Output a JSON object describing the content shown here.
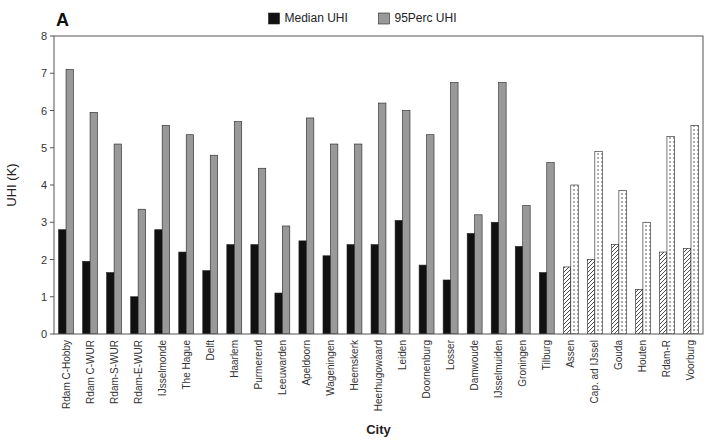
{
  "chart_data": {
    "type": "bar",
    "annotations": [
      "A"
    ],
    "x_label": "City",
    "y_label": "UHI (K)",
    "categories": [
      "Rdam C-Hobby",
      "Rdam C-WUR",
      "Rdam-S-WUR",
      "Rdam-E-WUR",
      "IJsselmonde",
      "The Hague",
      "Delft",
      "Haarlem",
      "Purmerend",
      "Leeuwarden",
      "Apeldoorn",
      "Wageningen",
      "Heemskerk",
      "Heerhugowaard",
      "Leiden",
      "Doornenburg",
      "Losser",
      "Damwoude",
      "IJsselmuiden",
      "Groningen",
      "Tilburg",
      "Assen",
      "Cap. ad IJssel",
      "Gouda",
      "Houten",
      "Rdam-R",
      "Voorburg"
    ],
    "series": [
      {
        "name": "Median UHI",
        "color": "#111111",
        "colors": [
          "#111111",
          "#111111",
          "#111111",
          "#111111",
          "#111111",
          "#111111",
          "#111111",
          "#111111",
          "#111111",
          "#111111",
          "#111111",
          "#111111",
          "#111111",
          "#111111",
          "#111111",
          "#111111",
          "#111111",
          "#111111",
          "#111111",
          "#111111",
          "#111111",
          "#ffffff",
          "#ffffff",
          "#ffffff",
          "#ffffff",
          "#ffffff",
          "#ffffff"
        ],
        "values": [
          2.8,
          1.95,
          1.65,
          1.0,
          2.8,
          2.2,
          1.7,
          2.4,
          2.4,
          1.1,
          2.5,
          2.1,
          2.4,
          2.4,
          3.05,
          1.85,
          1.45,
          2.7,
          3.0,
          2.35,
          1.65,
          1.8,
          2.0,
          2.4,
          1.2,
          2.2,
          2.3
        ]
      },
      {
        "name": "95Perc UHI",
        "color": "#999999",
        "colors": [
          "#999999",
          "#999999",
          "#999999",
          "#999999",
          "#999999",
          "#999999",
          "#999999",
          "#999999",
          "#999999",
          "#999999",
          "#999999",
          "#999999",
          "#999999",
          "#999999",
          "#999999",
          "#999999",
          "#999999",
          "#999999",
          "#999999",
          "#999999",
          "#999999",
          "#ffffff",
          "#ffffff",
          "#ffffff",
          "#ffffff",
          "#ffffff",
          "#ffffff"
        ],
        "values": [
          7.1,
          5.95,
          5.1,
          3.35,
          5.6,
          5.35,
          4.8,
          5.7,
          4.45,
          2.9,
          5.8,
          5.1,
          5.1,
          6.2,
          6.0,
          5.35,
          6.75,
          3.2,
          6.75,
          3.45,
          4.6,
          4.0,
          4.9,
          3.85,
          3.0,
          5.3,
          5.6
        ]
      }
    ],
    "ylim": [
      0,
      8
    ],
    "yticks": [
      0,
      1,
      2,
      3,
      4,
      5,
      6,
      7,
      8
    ],
    "legend": "top"
  }
}
